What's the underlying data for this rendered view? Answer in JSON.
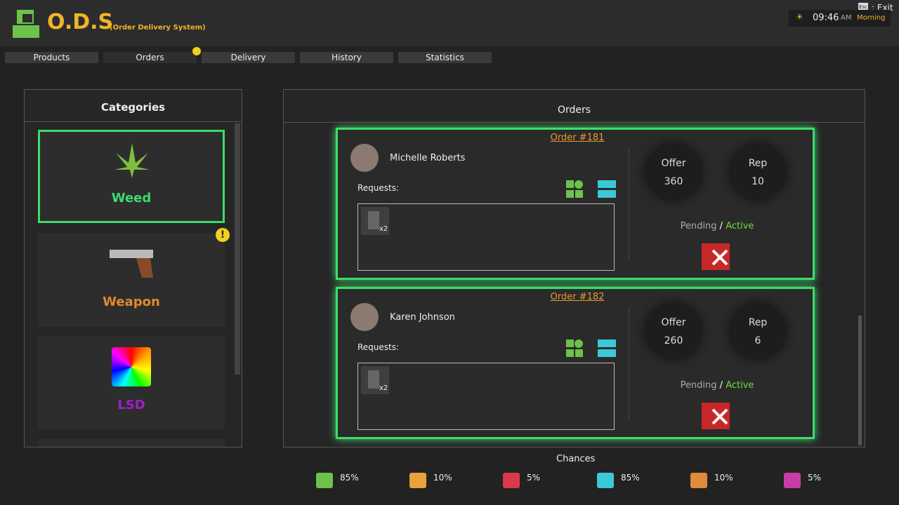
{
  "header": {
    "logo": "O.D.S",
    "subtitle": "(Order Delivery System)",
    "esc": "Esc",
    "exit": ": Exit",
    "time": "09:46",
    "ampm": "AM",
    "period": "Morning"
  },
  "tabs": [
    {
      "label": "Products"
    },
    {
      "label": "Orders"
    },
    {
      "label": "Delivery"
    },
    {
      "label": "History"
    },
    {
      "label": "Statistics"
    }
  ],
  "categories": {
    "title": "Categories",
    "items": [
      {
        "label": "Weed"
      },
      {
        "label": "Weapon"
      },
      {
        "label": "LSD"
      }
    ]
  },
  "orders": {
    "title": "Orders",
    "items": [
      {
        "id": "Order #181",
        "name": "Michelle Roberts",
        "requests_label": "Requests:",
        "quantity": "x2",
        "offer_label": "Offer",
        "offer": 360,
        "rep_label": "Rep",
        "rep": 10,
        "pending": "Pending",
        "separator": "/",
        "active": "Active"
      },
      {
        "id": "Order #182",
        "name": "Karen Johnson",
        "requests_label": "Requests:",
        "quantity": "x2",
        "offer_label": "Offer",
        "offer": 260,
        "rep_label": "Rep",
        "rep": 6,
        "pending": "Pending",
        "separator": "/",
        "active": "Active"
      }
    ]
  },
  "chances": {
    "title": "Chances",
    "items": [
      "85%",
      "10%",
      "5%",
      "85%",
      "10%",
      "5%"
    ]
  }
}
